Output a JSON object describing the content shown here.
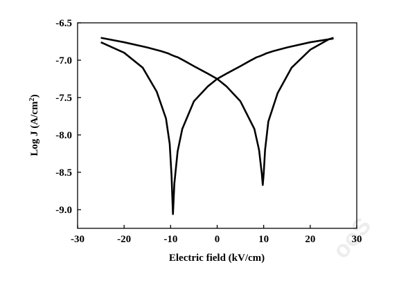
{
  "chart_data": {
    "type": "line",
    "title": "",
    "xlabel": "Electric field (kV/cm)",
    "ylabel_main": "Log J (A/cm",
    "ylabel_sup": "2",
    "ylabel_close": ")",
    "xlim": [
      -30,
      30
    ],
    "ylim": [
      -9.25,
      -6.5
    ],
    "xticks": [
      -30,
      -20,
      -10,
      0,
      10,
      20,
      30
    ],
    "yticks": [
      -6.5,
      -7.0,
      -7.5,
      -8.0,
      -8.5,
      -9.0
    ],
    "ytick_labels": [
      "-6.5",
      "-7.0",
      "-7.5",
      "-8.0",
      "-8.5",
      "-9.0"
    ],
    "grid": false,
    "legend": "none",
    "line_color": "#000000",
    "series": [
      {
        "x": [
          -25,
          -20,
          -15,
          -12,
          -10.5,
          -9.8,
          -9.4,
          -9.0,
          -8.5,
          -7,
          -5,
          -2,
          0,
          2,
          5,
          8,
          9,
          9.6,
          9.8,
          10.0,
          10.3,
          11,
          13,
          16,
          20,
          24,
          25
        ],
        "y": [
          -6.7,
          -6.76,
          -6.83,
          -6.88,
          -6.91,
          -6.93,
          -6.94,
          -6.95,
          -6.96,
          -7.01,
          -7.08,
          -7.18,
          -7.25,
          -7.35,
          -7.55,
          -7.92,
          -8.2,
          -8.52,
          -8.67,
          -8.52,
          -8.2,
          -7.82,
          -7.44,
          -7.1,
          -6.86,
          -6.72,
          -6.7
        ]
      },
      {
        "x": [
          25,
          20,
          15,
          12,
          10.5,
          9.8,
          9.4,
          9.0,
          8.5,
          7,
          5,
          2,
          0,
          -2,
          -5,
          -7.5,
          -8.5,
          -9.2,
          -9.5,
          -9.6,
          -9.8,
          -10.2,
          -11,
          -13,
          -16,
          -20,
          -25
        ],
        "y": [
          -6.71,
          -6.76,
          -6.83,
          -6.88,
          -6.91,
          -6.93,
          -6.94,
          -6.95,
          -6.96,
          -7.01,
          -7.08,
          -7.18,
          -7.25,
          -7.35,
          -7.55,
          -7.92,
          -8.22,
          -8.65,
          -9.06,
          -8.9,
          -8.55,
          -8.12,
          -7.78,
          -7.42,
          -7.1,
          -6.9,
          -6.76
        ]
      }
    ]
  },
  "watermark": "ooS"
}
